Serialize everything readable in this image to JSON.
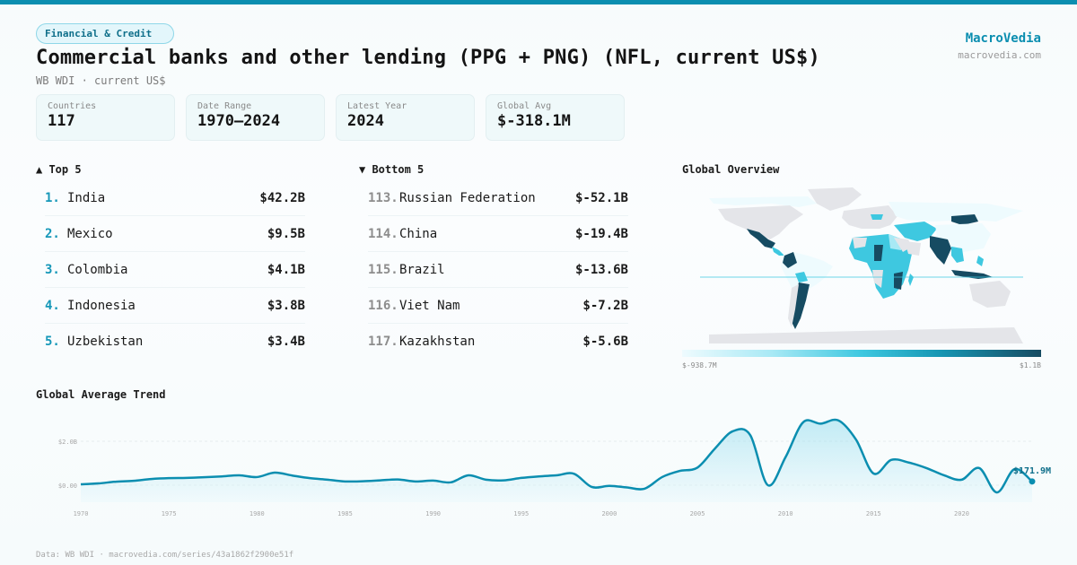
{
  "header": {
    "category_badge": "Financial & Credit",
    "title": "Commercial banks and other lending (PPG + PNG) (NFL, current US$)",
    "subtitle": "WB WDI · current US$",
    "brand_name": "MacroVedia",
    "brand_url": "macrovedia.com"
  },
  "stats": [
    {
      "label": "Countries",
      "value": "117"
    },
    {
      "label": "Date Range",
      "value": "1970–2024"
    },
    {
      "label": "Latest Year",
      "value": "2024"
    },
    {
      "label": "Global Avg",
      "value": "$-318.1M"
    }
  ],
  "top5": {
    "heading": "▲ Top 5",
    "items": [
      {
        "rank": "1.",
        "country": "India",
        "value": "$42.2B"
      },
      {
        "rank": "2.",
        "country": "Mexico",
        "value": "$9.5B"
      },
      {
        "rank": "3.",
        "country": "Colombia",
        "value": "$4.1B"
      },
      {
        "rank": "4.",
        "country": "Indonesia",
        "value": "$3.8B"
      },
      {
        "rank": "5.",
        "country": "Uzbekistan",
        "value": "$3.4B"
      }
    ]
  },
  "bottom5": {
    "heading": "▼ Bottom 5",
    "items": [
      {
        "rank": "113.",
        "country": "Russian Federation",
        "value": "$-52.1B"
      },
      {
        "rank": "114.",
        "country": "China",
        "value": "$-19.4B"
      },
      {
        "rank": "115.",
        "country": "Brazil",
        "value": "$-13.6B"
      },
      {
        "rank": "116.",
        "country": "Viet Nam",
        "value": "$-7.2B"
      },
      {
        "rank": "117.",
        "country": "Kazakhstan",
        "value": "$-5.6B"
      }
    ]
  },
  "map": {
    "heading": "Global Overview",
    "legend_min": "$-938.7M",
    "legend_max": "$1.1B",
    "colors": {
      "land": "#e4e5e9",
      "low": "#eefbfe",
      "mid": "#3ec8e0",
      "high": "#164b62"
    }
  },
  "trend": {
    "heading": "Global Average Trend",
    "last_label": "$171.9M",
    "line_color": "#0b8eb0"
  },
  "footer": "Data: WB WDI · macrovedia.com/series/43a1862f2900e51f",
  "chart_data": {
    "type": "area",
    "title": "Global Average Trend",
    "xlabel": "",
    "ylabel": "",
    "x": [
      1970,
      1971,
      1972,
      1973,
      1974,
      1975,
      1976,
      1977,
      1978,
      1979,
      1980,
      1981,
      1982,
      1983,
      1984,
      1985,
      1986,
      1987,
      1988,
      1989,
      1990,
      1991,
      1992,
      1993,
      1994,
      1995,
      1996,
      1997,
      1998,
      1999,
      2000,
      2001,
      2002,
      2003,
      2004,
      2005,
      2006,
      2007,
      2008,
      2009,
      2010,
      2011,
      2012,
      2013,
      2014,
      2015,
      2016,
      2017,
      2018,
      2019,
      2020,
      2021,
      2022,
      2023,
      2024
    ],
    "series": [
      {
        "name": "Global average (US$ billions)",
        "values": [
          0.04,
          0.08,
          0.16,
          0.2,
          0.28,
          0.32,
          0.33,
          0.36,
          0.4,
          0.45,
          0.37,
          0.57,
          0.44,
          0.32,
          0.25,
          0.17,
          0.18,
          0.22,
          0.26,
          0.17,
          0.21,
          0.13,
          0.45,
          0.25,
          0.22,
          0.33,
          0.4,
          0.45,
          0.52,
          -0.08,
          -0.03,
          -0.1,
          -0.16,
          0.37,
          0.65,
          0.8,
          1.67,
          2.45,
          2.28,
          0.0,
          1.27,
          2.86,
          2.8,
          2.95,
          2.08,
          0.53,
          1.15,
          1.03,
          0.78,
          0.45,
          0.25,
          0.78,
          -0.33,
          0.73,
          0.17
        ]
      }
    ],
    "y_ticks": [
      "$0.00",
      "$2.0B"
    ],
    "x_ticks": [
      "1970",
      "1975",
      "1980",
      "1985",
      "1990",
      "1995",
      "2000",
      "2005",
      "2010",
      "2015",
      "2020"
    ],
    "ylim": [
      -0.8,
      3.0
    ],
    "grid": true,
    "annotations": [
      {
        "x": 2024,
        "label": "$171.9M"
      }
    ],
    "legend": "none"
  }
}
